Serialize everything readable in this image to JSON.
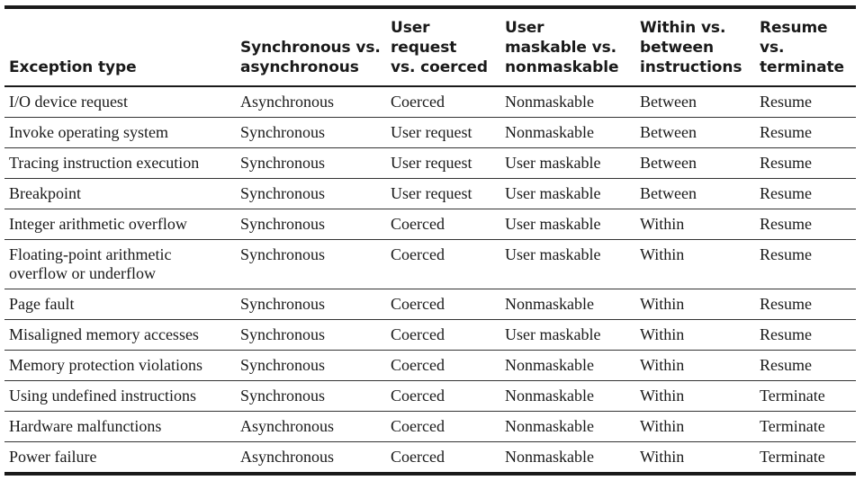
{
  "table": {
    "headers": [
      "Exception type",
      "Synchronous vs.\nasynchronous",
      "User request\nvs. coerced",
      "User\nmaskable vs.\nnonmaskable",
      "Within vs.\nbetween\ninstructions",
      "Resume vs.\nterminate"
    ],
    "rows": [
      [
        "I/O device request",
        "Asynchronous",
        "Coerced",
        "Nonmaskable",
        "Between",
        "Resume"
      ],
      [
        "Invoke operating system",
        "Synchronous",
        "User request",
        "Nonmaskable",
        "Between",
        "Resume"
      ],
      [
        "Tracing instruction execution",
        "Synchronous",
        "User request",
        "User maskable",
        "Between",
        "Resume"
      ],
      [
        "Breakpoint",
        "Synchronous",
        "User request",
        "User maskable",
        "Between",
        "Resume"
      ],
      [
        "Integer arithmetic overflow",
        "Synchronous",
        "Coerced",
        "User maskable",
        "Within",
        "Resume"
      ],
      [
        "Floating-point arithmetic\noverflow or underflow",
        "Synchronous",
        "Coerced",
        "User maskable",
        "Within",
        "Resume"
      ],
      [
        "Page fault",
        "Synchronous",
        "Coerced",
        "Nonmaskable",
        "Within",
        "Resume"
      ],
      [
        "Misaligned memory accesses",
        "Synchronous",
        "Coerced",
        "User maskable",
        "Within",
        "Resume"
      ],
      [
        "Memory protection violations",
        "Synchronous",
        "Coerced",
        "Nonmaskable",
        "Within",
        "Resume"
      ],
      [
        "Using undefined instructions",
        "Synchronous",
        "Coerced",
        "Nonmaskable",
        "Within",
        "Terminate"
      ],
      [
        "Hardware malfunctions",
        "Asynchronous",
        "Coerced",
        "Nonmaskable",
        "Within",
        "Terminate"
      ],
      [
        "Power failure",
        "Asynchronous",
        "Coerced",
        "Nonmaskable",
        "Within",
        "Terminate"
      ]
    ]
  }
}
